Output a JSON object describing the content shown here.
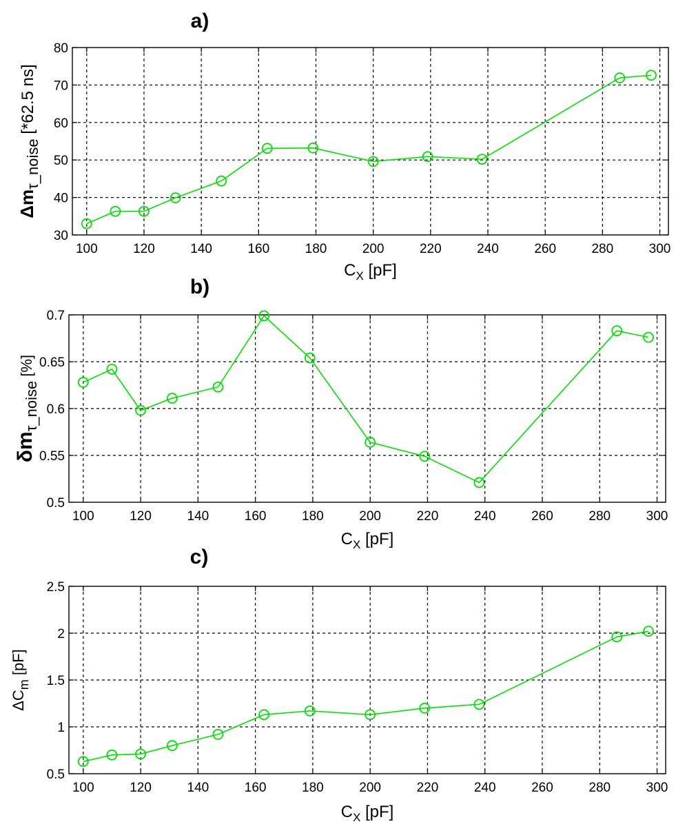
{
  "chart_data": [
    {
      "type": "line",
      "title": "a)",
      "xlabel": "C",
      "xlabel_sub": "X",
      "xlabel_unit": "[pF]",
      "ylabel": "Δm",
      "ylabel_sub": "τ_noise",
      "ylabel_unit": "[*62.5 ns]",
      "xlim": [
        95,
        303
      ],
      "ylim": [
        30,
        80
      ],
      "xticks": [
        100,
        120,
        140,
        160,
        180,
        200,
        220,
        240,
        260,
        280,
        300
      ],
      "yticks": [
        30,
        40,
        50,
        60,
        70,
        80
      ],
      "grid": true,
      "line_color": "#00e000",
      "marker": "circle",
      "x": [
        100,
        110,
        120,
        131,
        147,
        163,
        179,
        200,
        219,
        238,
        286,
        297
      ],
      "y": [
        33.0,
        36.3,
        36.3,
        39.9,
        44.4,
        53.1,
        53.2,
        49.6,
        50.9,
        50.2,
        71.9,
        72.6
      ]
    },
    {
      "type": "line",
      "title": "b)",
      "xlabel": "C",
      "xlabel_sub": "X",
      "xlabel_unit": "[pF]",
      "ylabel": "δm",
      "ylabel_sub": "τ_noise",
      "ylabel_unit": "[%]",
      "xlim": [
        95,
        303
      ],
      "ylim": [
        0.5,
        0.7
      ],
      "xticks": [
        100,
        120,
        140,
        160,
        180,
        200,
        220,
        240,
        260,
        280,
        300
      ],
      "yticks": [
        0.5,
        0.55,
        0.6,
        0.65,
        0.7
      ],
      "grid": true,
      "line_color": "#00e000",
      "marker": "circle",
      "x": [
        100,
        110,
        120,
        131,
        147,
        163,
        179,
        200,
        219,
        238,
        286,
        297
      ],
      "y": [
        0.628,
        0.642,
        0.598,
        0.611,
        0.623,
        0.699,
        0.654,
        0.564,
        0.549,
        0.521,
        0.683,
        0.676
      ]
    },
    {
      "type": "line",
      "title": "c)",
      "xlabel": "C",
      "xlabel_sub": "X",
      "xlabel_unit": "[pF]",
      "ylabel": "ΔC",
      "ylabel_sub": "m",
      "ylabel_unit": "[pF]",
      "xlim": [
        95,
        303
      ],
      "ylim": [
        0.5,
        2.5
      ],
      "xticks": [
        100,
        120,
        140,
        160,
        180,
        200,
        220,
        240,
        260,
        280,
        300
      ],
      "yticks": [
        0.5,
        1,
        1.5,
        2,
        2.5
      ],
      "grid": true,
      "line_color": "#00e000",
      "marker": "circle",
      "x": [
        100,
        110,
        120,
        131,
        147,
        163,
        179,
        200,
        219,
        238,
        286,
        297
      ],
      "y": [
        0.63,
        0.7,
        0.71,
        0.8,
        0.92,
        1.13,
        1.17,
        1.13,
        1.2,
        1.24,
        1.96,
        2.02
      ]
    }
  ]
}
